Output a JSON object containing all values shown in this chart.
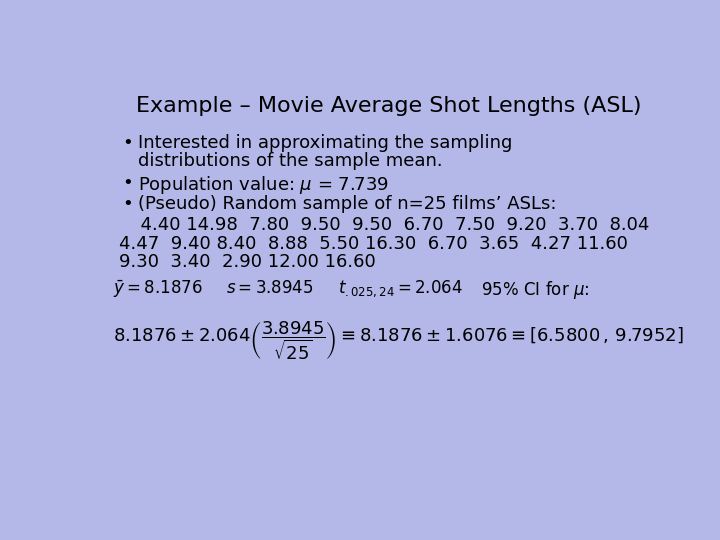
{
  "title": "Example – Movie Average Shot Lengths (ASL)",
  "bg_color": "#b3b8e8",
  "bullet1_line1": "Interested in approximating the sampling",
  "bullet1_line2": "distributions of the sample mean.",
  "bullet2": "Population value: $\\mu$ = 7.739",
  "bullet3": "(Pseudo) Random sample of n=25 films’ ASLs:",
  "data_line1": "  4.40 14.98  7.80  9.50  9.50  6.70  7.50  9.20  3.70  8.04",
  "data_line2": "4.47  9.40 8.40  8.88  5.50 16.30  6.70  3.65  4.27 11.60",
  "data_line3": "9.30  3.40  2.90 12.00 16.60",
  "formula_line1_a": "$\\bar{y} = 8.1876$",
  "formula_line1_b": "$s = 3.8945$",
  "formula_line1_c": "$t_{.025,24} = 2.064$",
  "formula_line1_d": "95% CI for $\\mu$:",
  "formula_line2": "$8.1876 \\pm 2.064\\left(\\dfrac{3.8945}{\\sqrt{25}}\\right) \\equiv 8.1876 \\pm 1.6076 \\equiv [6.5800\\,,\\,9.7952]$",
  "title_fontsize": 16,
  "body_fontsize": 13,
  "formula_fontsize": 12,
  "formula2_fontsize": 13
}
